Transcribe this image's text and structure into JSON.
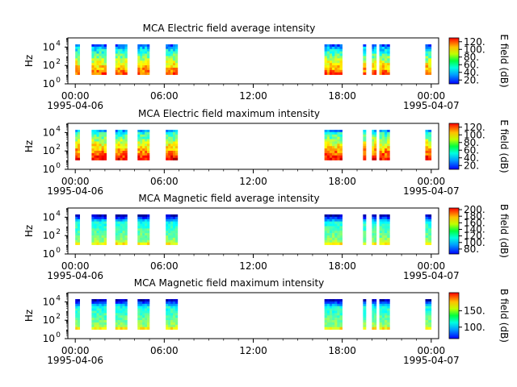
{
  "chart_data": [
    {
      "type": "heatmap",
      "title": "MCA  Electric field average intensity",
      "ylabel": "Hz",
      "y_scale": "log",
      "ylim": [
        1,
        100000
      ],
      "y_ticks": [
        {
          "value": 1,
          "base": "10",
          "exp": "0"
        },
        {
          "value": 100,
          "base": "10",
          "exp": "2"
        },
        {
          "value": 10000,
          "base": "10",
          "exp": "4"
        }
      ],
      "x_ticks": [
        "00:00",
        "06:00",
        "12:00",
        "18:00",
        "00:00"
      ],
      "x_tick_hours": [
        0,
        6,
        12,
        18,
        24
      ],
      "x_date_labels": [
        {
          "hour": 0,
          "text": "1995-04-06"
        },
        {
          "hour": 24,
          "text": "1995-04-07"
        }
      ],
      "xlim_hours": [
        -0.5,
        24.5
      ],
      "colorbar": {
        "label": "E field (dB)",
        "ticks": [
          "20.",
          "40.",
          "60.",
          "80.",
          "100.",
          "120."
        ],
        "tick_values": [
          20,
          40,
          60,
          80,
          100,
          120
        ],
        "range": [
          10,
          130
        ]
      },
      "data_intervals_hours": [
        [
          0.0,
          0.3
        ],
        [
          1.1,
          2.1
        ],
        [
          2.7,
          3.5
        ],
        [
          4.2,
          5.0
        ],
        [
          6.1,
          6.9
        ],
        [
          16.8,
          18.0
        ],
        [
          19.4,
          19.6
        ],
        [
          20.0,
          20.3
        ],
        [
          20.5,
          21.2
        ],
        [
          23.6,
          24.0
        ]
      ]
    },
    {
      "type": "heatmap",
      "title": "MCA  Electric field maximum intensity",
      "ylabel": "Hz",
      "y_scale": "log",
      "ylim": [
        1,
        100000
      ],
      "y_ticks": [
        {
          "value": 1,
          "base": "10",
          "exp": "0"
        },
        {
          "value": 100,
          "base": "10",
          "exp": "2"
        },
        {
          "value": 10000,
          "base": "10",
          "exp": "4"
        }
      ],
      "x_ticks": [
        "00:00",
        "06:00",
        "12:00",
        "18:00",
        "00:00"
      ],
      "x_tick_hours": [
        0,
        6,
        12,
        18,
        24
      ],
      "x_date_labels": [
        {
          "hour": 0,
          "text": "1995-04-06"
        },
        {
          "hour": 24,
          "text": "1995-04-07"
        }
      ],
      "xlim_hours": [
        -0.5,
        24.5
      ],
      "colorbar": {
        "label": "E field (dB)",
        "ticks": [
          "20.",
          "40.",
          "60.",
          "80.",
          "100.",
          "120."
        ],
        "tick_values": [
          20,
          40,
          60,
          80,
          100,
          120
        ],
        "range": [
          10,
          130
        ]
      },
      "data_intervals_hours": [
        [
          0.0,
          0.3
        ],
        [
          1.1,
          2.1
        ],
        [
          2.7,
          3.5
        ],
        [
          4.2,
          5.0
        ],
        [
          6.1,
          6.9
        ],
        [
          16.8,
          18.0
        ],
        [
          19.4,
          19.6
        ],
        [
          20.0,
          20.3
        ],
        [
          20.5,
          21.2
        ],
        [
          23.6,
          24.0
        ]
      ]
    },
    {
      "type": "heatmap",
      "title": "MCA  Magnetic field average intensity",
      "ylabel": "Hz",
      "y_scale": "log",
      "ylim": [
        1,
        100000
      ],
      "y_ticks": [
        {
          "value": 1,
          "base": "10",
          "exp": "0"
        },
        {
          "value": 100,
          "base": "10",
          "exp": "2"
        },
        {
          "value": 10000,
          "base": "10",
          "exp": "4"
        }
      ],
      "x_ticks": [
        "00:00",
        "06:00",
        "12:00",
        "18:00",
        "00:00"
      ],
      "x_tick_hours": [
        0,
        6,
        12,
        18,
        24
      ],
      "x_date_labels": [
        {
          "hour": 0,
          "text": "1995-04-06"
        },
        {
          "hour": 24,
          "text": "1995-04-07"
        }
      ],
      "xlim_hours": [
        -0.5,
        24.5
      ],
      "colorbar": {
        "label": "B field (dB)",
        "ticks": [
          "80.",
          "100.",
          "120.",
          "140.",
          "160.",
          "180.",
          "200."
        ],
        "tick_values": [
          80,
          100,
          120,
          140,
          160,
          180,
          200
        ],
        "range": [
          65,
          205
        ]
      },
      "data_intervals_hours": [
        [
          0.0,
          0.3
        ],
        [
          1.1,
          2.1
        ],
        [
          2.7,
          3.5
        ],
        [
          4.2,
          5.0
        ],
        [
          6.1,
          6.9
        ],
        [
          16.8,
          18.0
        ],
        [
          19.4,
          19.6
        ],
        [
          20.0,
          20.3
        ],
        [
          20.5,
          21.2
        ],
        [
          23.6,
          24.0
        ]
      ]
    },
    {
      "type": "heatmap",
      "title": "MCA  Magnetic field maximum intensity",
      "ylabel": "Hz",
      "y_scale": "log",
      "ylim": [
        1,
        100000
      ],
      "y_ticks": [
        {
          "value": 1,
          "base": "10",
          "exp": "0"
        },
        {
          "value": 100,
          "base": "10",
          "exp": "2"
        },
        {
          "value": 10000,
          "base": "10",
          "exp": "4"
        }
      ],
      "x_ticks": [
        "00:00",
        "06:00",
        "12:00",
        "18:00",
        "00:00"
      ],
      "x_tick_hours": [
        0,
        6,
        12,
        18,
        24
      ],
      "x_date_labels": [
        {
          "hour": 0,
          "text": "1995-04-06"
        },
        {
          "hour": 24,
          "text": "1995-04-07"
        }
      ],
      "xlim_hours": [
        -0.5,
        24.5
      ],
      "colorbar": {
        "label": "B field (dB)",
        "ticks": [
          "100.",
          "150."
        ],
        "tick_values": [
          100,
          150
        ],
        "range": [
          65,
          205
        ]
      },
      "data_intervals_hours": [
        [
          0.0,
          0.3
        ],
        [
          1.1,
          2.1
        ],
        [
          2.7,
          3.5
        ],
        [
          4.2,
          5.0
        ],
        [
          6.1,
          6.9
        ],
        [
          16.8,
          18.0
        ],
        [
          19.4,
          19.6
        ],
        [
          20.0,
          20.3
        ],
        [
          20.5,
          21.2
        ],
        [
          23.6,
          24.0
        ]
      ]
    }
  ]
}
